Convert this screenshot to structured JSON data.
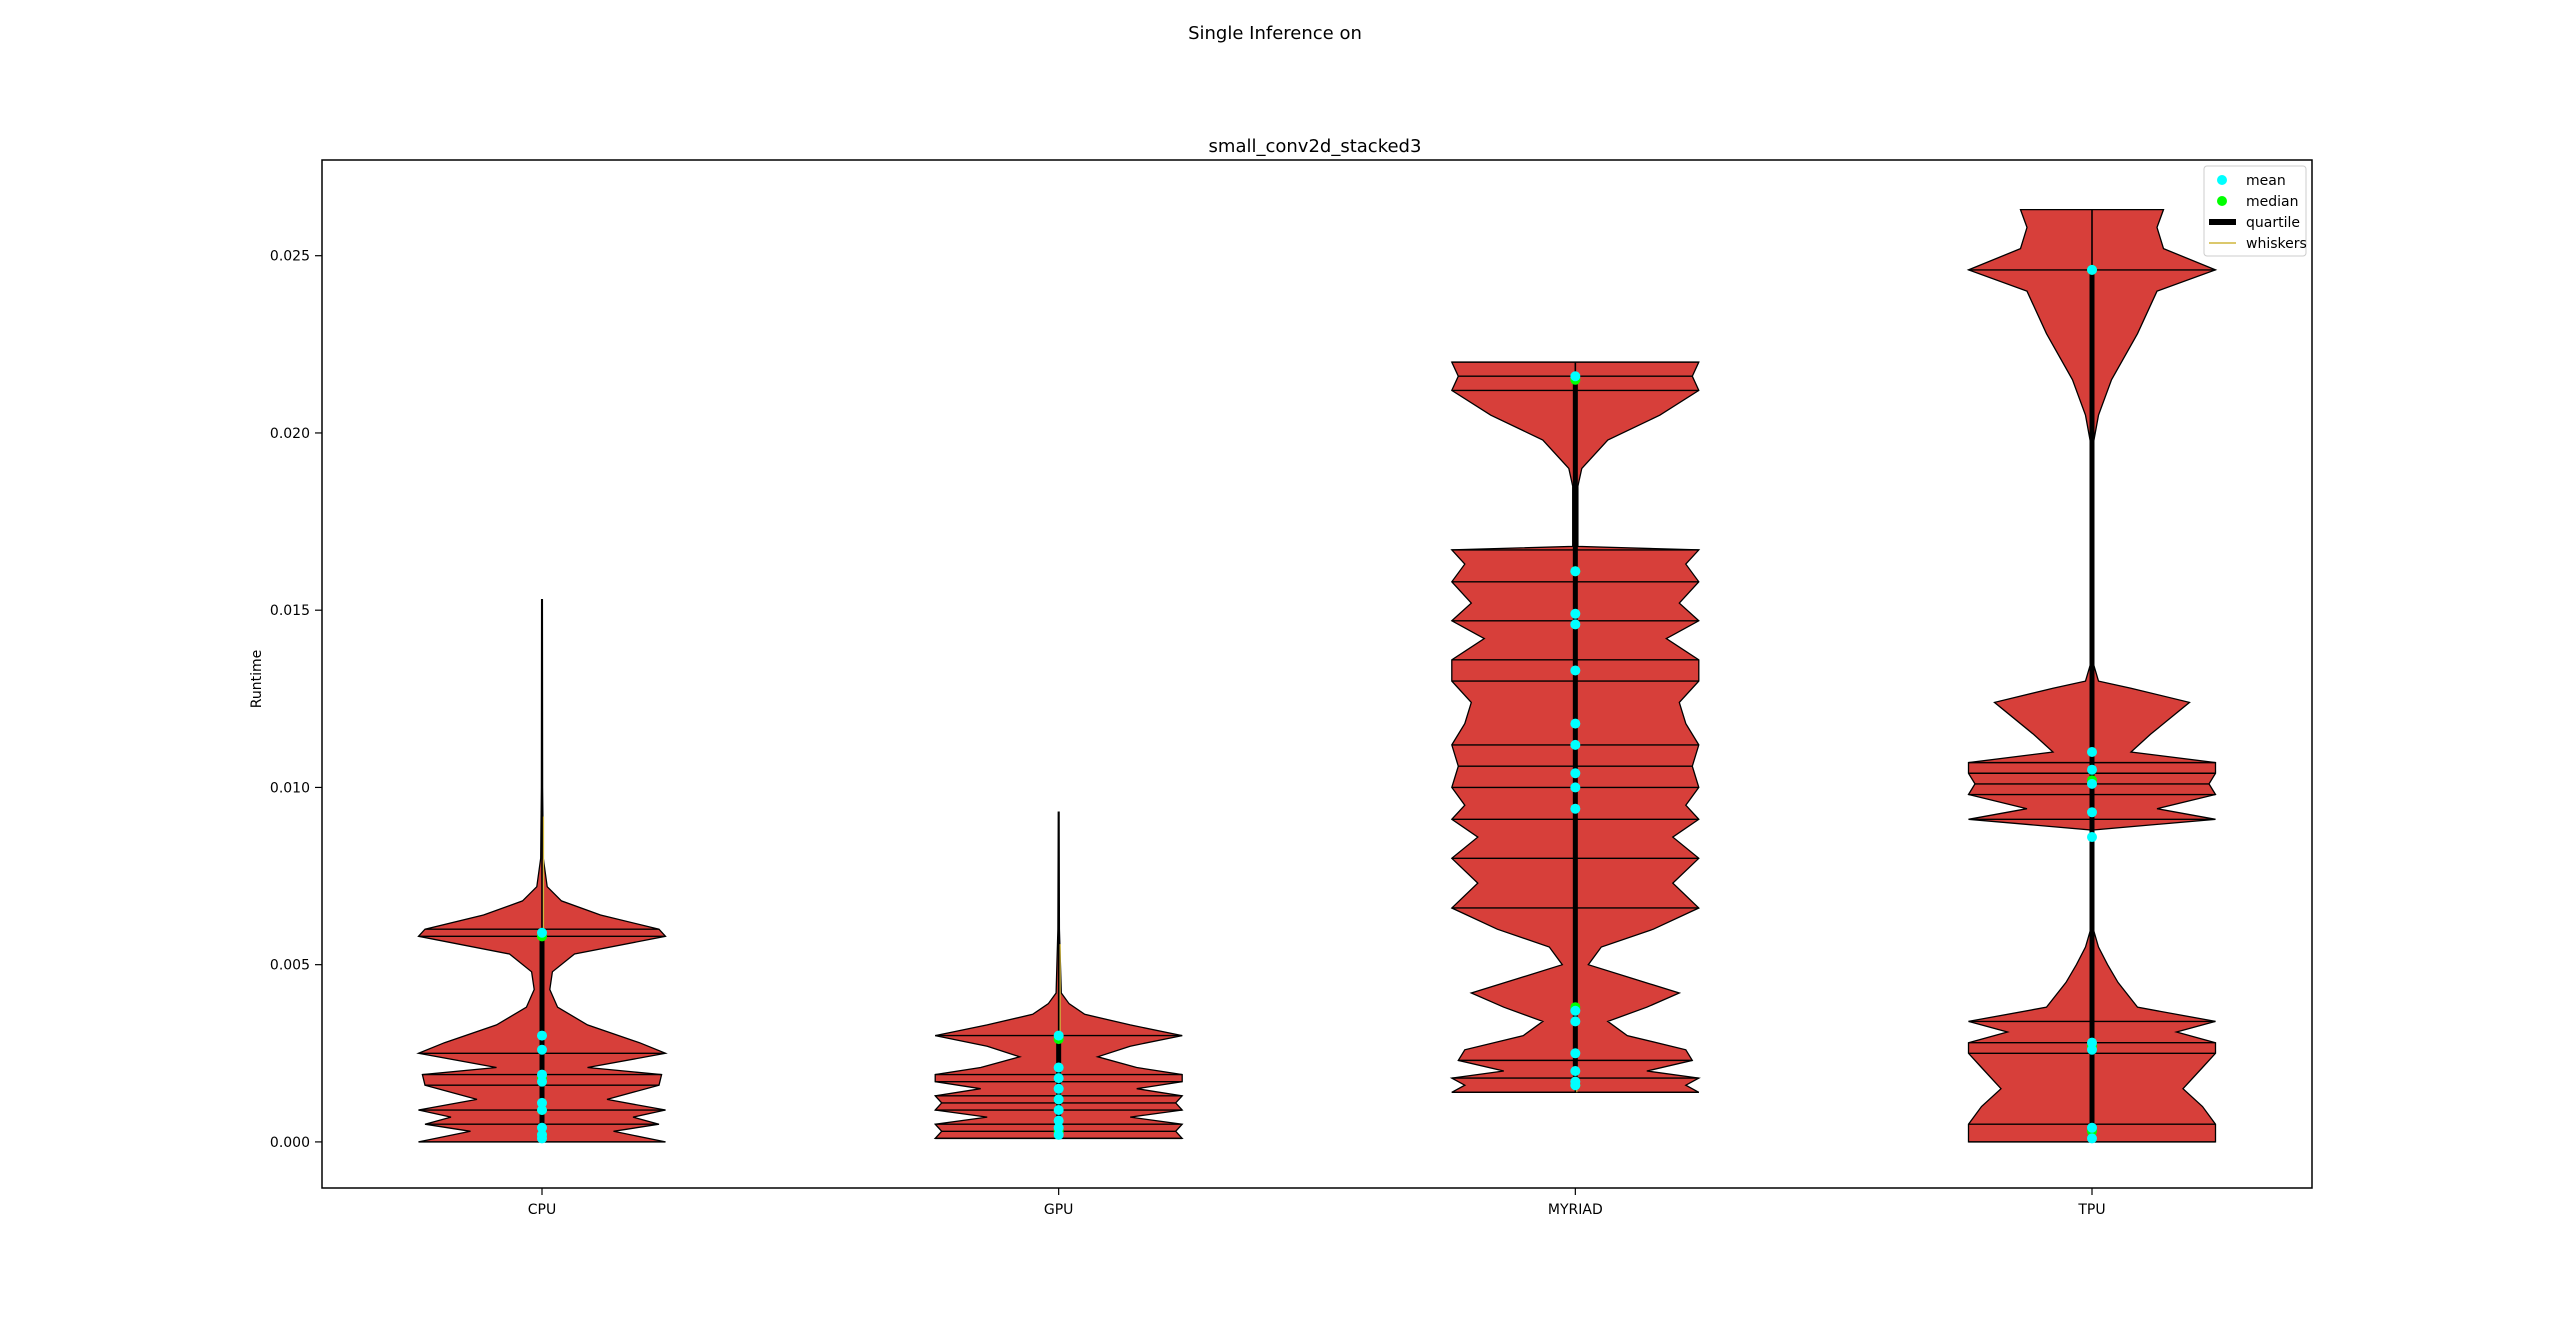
{
  "figure": {
    "suptitle": "Single Inference on"
  },
  "chart_data": {
    "type": "violin",
    "title": "small_conv2d_stacked3",
    "xlabel": "",
    "ylabel": "Runtime",
    "categories": [
      "CPU",
      "GPU",
      "MYRIAD",
      "TPU"
    ],
    "ylim": [
      -0.0013,
      0.0277
    ],
    "yticks": [
      "0.000",
      "0.005",
      "0.010",
      "0.015",
      "0.020",
      "0.025"
    ],
    "yticks_values": [
      0.0,
      0.005,
      0.01,
      0.015,
      0.02,
      0.025
    ],
    "grid": false,
    "legend_position": "top-right",
    "legend": [
      {
        "label": "mean",
        "color": "#00ffff",
        "kind": "dot"
      },
      {
        "label": "median",
        "color": "#00ff00",
        "kind": "dot"
      },
      {
        "label": "quartile",
        "color": "#000000",
        "kind": "thick-line"
      },
      {
        "label": "whiskers",
        "color": "#cfb53b",
        "kind": "thin-line"
      }
    ],
    "colors": {
      "violin_fill": "#d73f3a",
      "violin_edge": "#000000",
      "mean": "#00ffff",
      "median": "#00ff00",
      "quartile": "#000000",
      "whiskers": "#cfb53b"
    },
    "series": [
      {
        "name": "CPU",
        "min": 0.0,
        "max": 0.0153,
        "means": [
          0.0059,
          0.003,
          0.0026,
          0.0019,
          0.0017,
          0.0011,
          0.0009,
          0.0004,
          0.0002,
          0.0001
        ],
        "medians": [
          0.0058,
          0.0018,
          0.0009,
          0.0002
        ],
        "density": [
          [
            0.0,
            0.95
          ],
          [
            0.0003,
            0.55
          ],
          [
            0.0005,
            0.9
          ],
          [
            0.0007,
            0.7
          ],
          [
            0.0009,
            0.95
          ],
          [
            0.0012,
            0.5
          ],
          [
            0.0016,
            0.9
          ],
          [
            0.0019,
            0.92
          ],
          [
            0.0021,
            0.35
          ],
          [
            0.0025,
            0.95
          ],
          [
            0.0028,
            0.75
          ],
          [
            0.0033,
            0.35
          ],
          [
            0.0038,
            0.12
          ],
          [
            0.0043,
            0.06
          ],
          [
            0.0048,
            0.08
          ],
          [
            0.0053,
            0.25
          ],
          [
            0.0058,
            0.95
          ],
          [
            0.006,
            0.9
          ],
          [
            0.0064,
            0.45
          ],
          [
            0.0068,
            0.15
          ],
          [
            0.0072,
            0.04
          ],
          [
            0.008,
            0.01
          ],
          [
            0.01,
            0.005
          ],
          [
            0.0153,
            0.003
          ]
        ]
      },
      {
        "name": "GPU",
        "min": 0.0001,
        "max": 0.0093,
        "means": [
          0.003,
          0.0021,
          0.0018,
          0.0015,
          0.0012,
          0.0009,
          0.0006,
          0.0004,
          0.0002
        ],
        "medians": [
          0.0029,
          0.0012,
          0.0003
        ],
        "density": [
          [
            0.0001,
            0.95
          ],
          [
            0.0003,
            0.9
          ],
          [
            0.0005,
            0.95
          ],
          [
            0.0007,
            0.55
          ],
          [
            0.0009,
            0.95
          ],
          [
            0.0011,
            0.9
          ],
          [
            0.0013,
            0.95
          ],
          [
            0.0015,
            0.6
          ],
          [
            0.0017,
            0.95
          ],
          [
            0.0019,
            0.95
          ],
          [
            0.0021,
            0.6
          ],
          [
            0.0024,
            0.3
          ],
          [
            0.0027,
            0.55
          ],
          [
            0.003,
            0.95
          ],
          [
            0.0033,
            0.55
          ],
          [
            0.0036,
            0.2
          ],
          [
            0.0039,
            0.08
          ],
          [
            0.0042,
            0.02
          ],
          [
            0.006,
            0.006
          ],
          [
            0.0093,
            0.003
          ]
        ]
      },
      {
        "name": "MYRIAD",
        "min": 0.0014,
        "max": 0.022,
        "means": [
          0.0216,
          0.0161,
          0.0149,
          0.0146,
          0.0133,
          0.0118,
          0.0112,
          0.0104,
          0.01,
          0.0094,
          0.0037,
          0.0034,
          0.0025,
          0.002,
          0.0017,
          0.0016
        ],
        "medians": [
          0.0215,
          0.0161,
          0.0038,
          0.0016
        ],
        "density": [
          [
            0.0014,
            0.95
          ],
          [
            0.0016,
            0.85
          ],
          [
            0.0018,
            0.95
          ],
          [
            0.002,
            0.55
          ],
          [
            0.0023,
            0.9
          ],
          [
            0.0026,
            0.85
          ],
          [
            0.003,
            0.4
          ],
          [
            0.0034,
            0.25
          ],
          [
            0.0038,
            0.55
          ],
          [
            0.0042,
            0.8
          ],
          [
            0.0046,
            0.45
          ],
          [
            0.005,
            0.1
          ],
          [
            0.0055,
            0.2
          ],
          [
            0.006,
            0.6
          ],
          [
            0.0066,
            0.95
          ],
          [
            0.0073,
            0.75
          ],
          [
            0.008,
            0.95
          ],
          [
            0.0086,
            0.75
          ],
          [
            0.0091,
            0.95
          ],
          [
            0.0095,
            0.85
          ],
          [
            0.01,
            0.95
          ],
          [
            0.0106,
            0.9
          ],
          [
            0.0112,
            0.95
          ],
          [
            0.0118,
            0.85
          ],
          [
            0.0124,
            0.8
          ],
          [
            0.013,
            0.95
          ],
          [
            0.0136,
            0.95
          ],
          [
            0.0142,
            0.7
          ],
          [
            0.0147,
            0.95
          ],
          [
            0.0152,
            0.8
          ],
          [
            0.0158,
            0.95
          ],
          [
            0.0163,
            0.85
          ],
          [
            0.0167,
            0.95
          ],
          [
            0.0168,
            0.02
          ],
          [
            0.0185,
            0.02
          ],
          [
            0.019,
            0.05
          ],
          [
            0.0198,
            0.25
          ],
          [
            0.0205,
            0.65
          ],
          [
            0.0212,
            0.95
          ],
          [
            0.0216,
            0.9
          ],
          [
            0.022,
            0.95
          ]
        ]
      },
      {
        "name": "TPU",
        "min": 0.0,
        "max": 0.0263,
        "means": [
          0.0246,
          0.011,
          0.0105,
          0.0101,
          0.0093,
          0.0086,
          0.0028,
          0.0026,
          0.0004,
          0.0001
        ],
        "medians": [
          0.0246,
          0.0102,
          0.0027,
          0.0003
        ],
        "density": [
          [
            0.0,
            0.95
          ],
          [
            0.0005,
            0.95
          ],
          [
            0.001,
            0.85
          ],
          [
            0.0015,
            0.7
          ],
          [
            0.0021,
            0.85
          ],
          [
            0.0025,
            0.95
          ],
          [
            0.0028,
            0.95
          ],
          [
            0.0031,
            0.65
          ],
          [
            0.0034,
            0.95
          ],
          [
            0.0038,
            0.35
          ],
          [
            0.0045,
            0.2
          ],
          [
            0.005,
            0.12
          ],
          [
            0.0055,
            0.05
          ],
          [
            0.006,
            0.01
          ],
          [
            0.0088,
            0.01
          ],
          [
            0.0091,
            0.95
          ],
          [
            0.0094,
            0.5
          ],
          [
            0.0098,
            0.95
          ],
          [
            0.0101,
            0.9
          ],
          [
            0.0104,
            0.95
          ],
          [
            0.0107,
            0.95
          ],
          [
            0.011,
            0.3
          ],
          [
            0.0115,
            0.45
          ],
          [
            0.0124,
            0.75
          ],
          [
            0.0128,
            0.3
          ],
          [
            0.013,
            0.05
          ],
          [
            0.0135,
            0.01
          ],
          [
            0.0197,
            0.01
          ],
          [
            0.0205,
            0.05
          ],
          [
            0.0215,
            0.15
          ],
          [
            0.0228,
            0.35
          ],
          [
            0.024,
            0.5
          ],
          [
            0.0246,
            0.95
          ],
          [
            0.0252,
            0.55
          ],
          [
            0.0258,
            0.5
          ],
          [
            0.0263,
            0.55
          ]
        ]
      }
    ]
  }
}
